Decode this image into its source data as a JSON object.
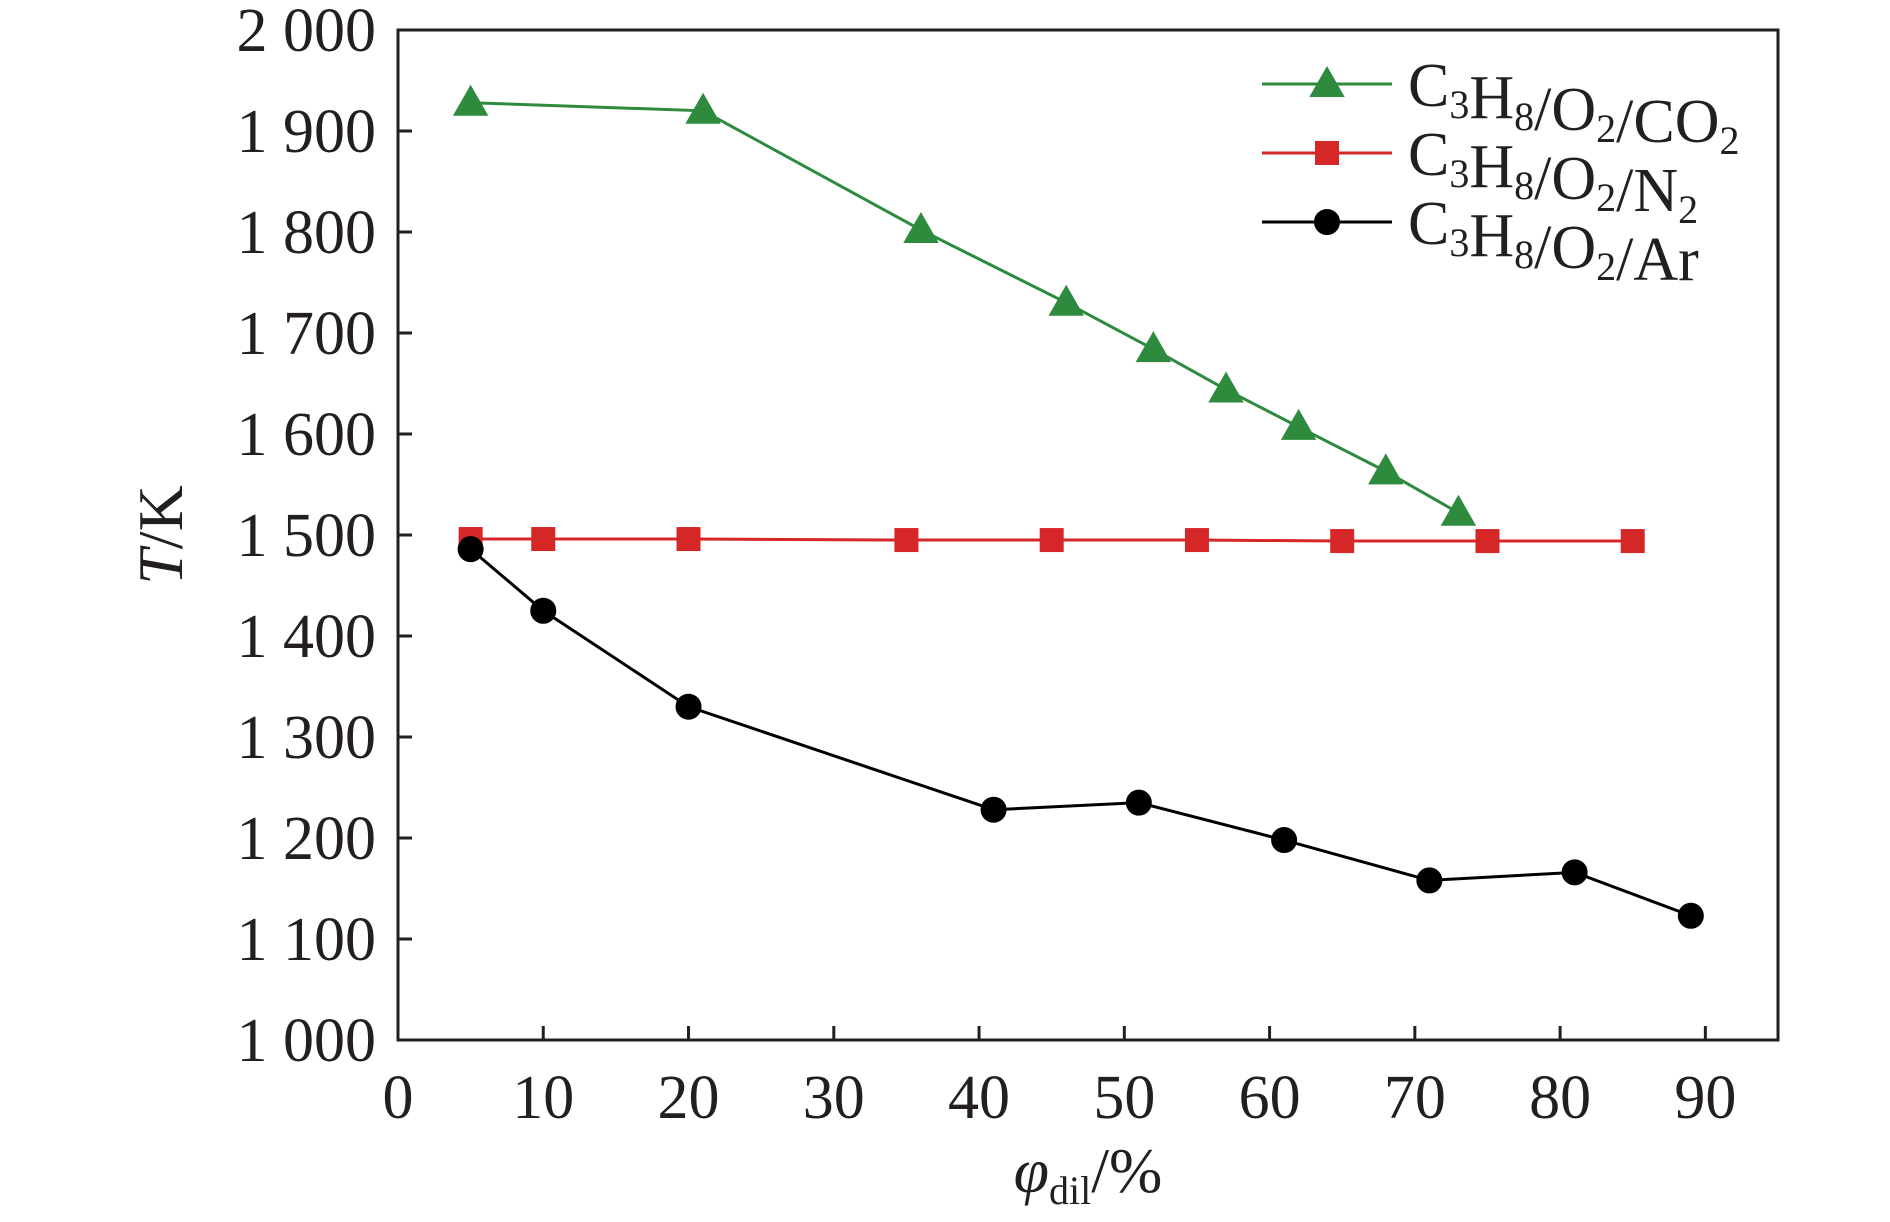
{
  "chart_data": {
    "type": "line",
    "xlabel": "φdil/%",
    "xlabel_parts": {
      "symbol": "φ",
      "subscript": "dil",
      "unit": "/%"
    },
    "ylabel": "T/K",
    "ylabel_parts": {
      "symbol": "T",
      "unit": "/K"
    },
    "xlim": [
      0,
      95
    ],
    "ylim": [
      1000,
      2000
    ],
    "xticks": [
      0,
      10,
      20,
      30,
      40,
      50,
      60,
      70,
      80,
      90
    ],
    "xtick_labels": [
      "0",
      "10",
      "20",
      "30",
      "40",
      "50",
      "60",
      "70",
      "80",
      "90"
    ],
    "yticks": [
      1000,
      1100,
      1200,
      1300,
      1400,
      1500,
      1600,
      1700,
      1800,
      1900,
      2000
    ],
    "ytick_labels": [
      "1 000",
      "1 100",
      "1 200",
      "1 300",
      "1 400",
      "1 500",
      "1 600",
      "1 700",
      "1 800",
      "1 900",
      "2 000"
    ],
    "grid": false,
    "legend_position": "top-right",
    "series": [
      {
        "name": "C3H8/O2/CO2",
        "name_parts": [
          [
            "C",
            ""
          ],
          [
            "3",
            "sub"
          ],
          [
            "H",
            ""
          ],
          [
            "8",
            "sub"
          ],
          [
            "/O",
            ""
          ],
          [
            "2",
            "sub"
          ],
          [
            "/CO",
            ""
          ],
          [
            "2",
            "sub"
          ]
        ],
        "color": "#2e8b3e",
        "marker": "triangle",
        "x": [
          5,
          21,
          36,
          46,
          52,
          57,
          62,
          68,
          73
        ],
        "y": [
          1928,
          1920,
          1802,
          1730,
          1684,
          1644,
          1607,
          1563,
          1522
        ]
      },
      {
        "name": "C3H8/O2/N2",
        "name_parts": [
          [
            "C",
            ""
          ],
          [
            "3",
            "sub"
          ],
          [
            "H",
            ""
          ],
          [
            "8",
            "sub"
          ],
          [
            "/O",
            ""
          ],
          [
            "2",
            "sub"
          ],
          [
            "/N",
            ""
          ],
          [
            "2",
            "sub"
          ]
        ],
        "color": "#d62728",
        "marker": "square",
        "x": [
          5,
          10,
          20,
          35,
          45,
          55,
          65,
          75,
          85
        ],
        "y": [
          1496,
          1496,
          1496,
          1495,
          1495,
          1495,
          1494,
          1494,
          1494
        ]
      },
      {
        "name": "C3H8/O2/Ar",
        "name_parts": [
          [
            "C",
            ""
          ],
          [
            "3",
            "sub"
          ],
          [
            "H",
            ""
          ],
          [
            "8",
            "sub"
          ],
          [
            "/O",
            ""
          ],
          [
            "2",
            "sub"
          ],
          [
            "/Ar",
            ""
          ]
        ],
        "color": "#000000",
        "marker": "circle",
        "x": [
          5,
          10,
          20,
          41,
          51,
          61,
          71,
          81,
          89
        ],
        "y": [
          1486,
          1425,
          1330,
          1228,
          1235,
          1198,
          1158,
          1166,
          1123
        ]
      }
    ]
  }
}
